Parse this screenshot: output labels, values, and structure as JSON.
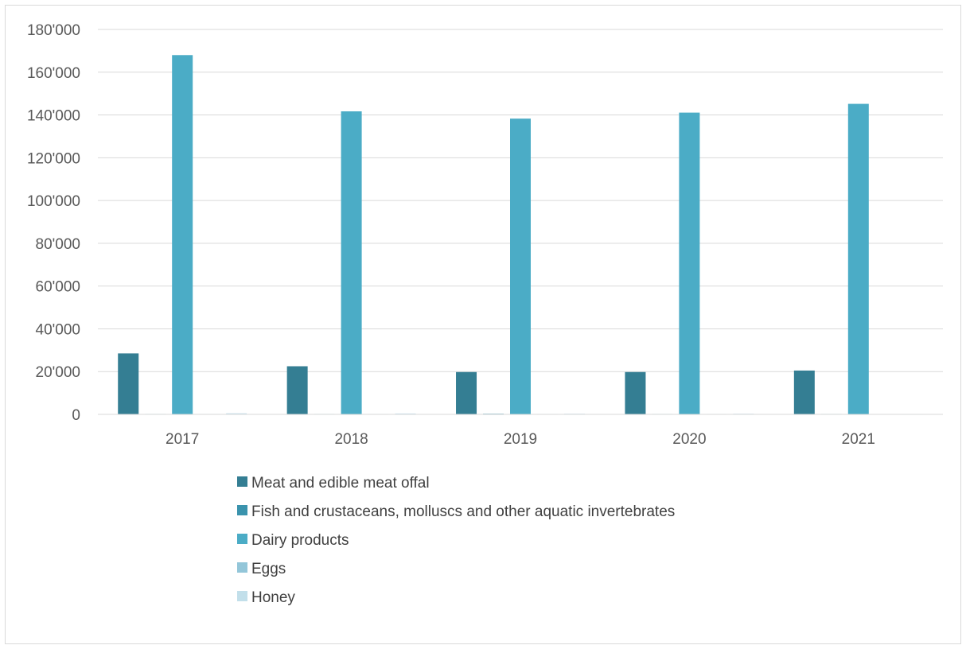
{
  "chart_data": {
    "type": "bar",
    "title": "",
    "xlabel": "",
    "ylabel": "",
    "categories": [
      "2017",
      "2018",
      "2019",
      "2020",
      "2021"
    ],
    "ylim": [
      0,
      180000
    ],
    "yticks": [
      0,
      20000,
      40000,
      60000,
      80000,
      100000,
      120000,
      140000,
      160000,
      180000
    ],
    "ytick_labels": [
      "0",
      "20'000",
      "40'000",
      "60'000",
      "80'000",
      "100'000",
      "120'000",
      "140'000",
      "160'000",
      "180'000"
    ],
    "grid": true,
    "legend_position": "bottom",
    "series": [
      {
        "name": "Meat and edible meat offal",
        "color": "#347e93",
        "values": [
          28500,
          22500,
          19800,
          19800,
          20500
        ]
      },
      {
        "name": "Fish and crustaceans, molluscs and other aquatic invertebrates",
        "color": "#3a93ad",
        "values": [
          200,
          200,
          300,
          200,
          200
        ]
      },
      {
        "name": "Dairy products",
        "color": "#4bacc6",
        "values": [
          168000,
          141700,
          138300,
          141100,
          145200
        ]
      },
      {
        "name": "Eggs",
        "color": "#93c6d9",
        "values": [
          200,
          200,
          200,
          200,
          150
        ]
      },
      {
        "name": "Honey",
        "color": "#c2dfea",
        "values": [
          500,
          400,
          300,
          300,
          200
        ]
      }
    ]
  }
}
